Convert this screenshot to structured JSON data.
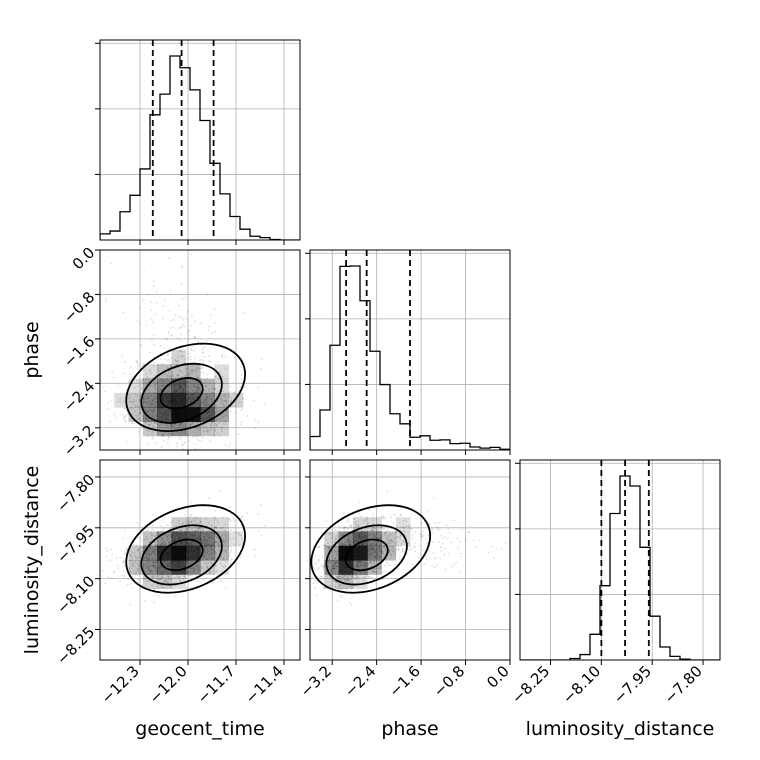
{
  "chart_data": {
    "type": "corner",
    "parameters": [
      {
        "name": "geocent_time",
        "label": "geocent_time",
        "range": [
          -12.55,
          -11.3
        ],
        "ticks": [
          "-12.3",
          "-12.0",
          "-11.7",
          "-11.4"
        ],
        "tick_values": [
          -12.3,
          -12.0,
          -11.7,
          -11.4
        ],
        "quantiles": [
          -12.22,
          -12.04,
          -11.84
        ],
        "peak": -12.05,
        "sigma": 0.17,
        "skew": 0
      },
      {
        "name": "phase",
        "label": "phase",
        "range": [
          -3.6,
          0.0
        ],
        "ticks": [
          "-3.2",
          "-2.4",
          "-1.6",
          "-0.8",
          "0.0"
        ],
        "tick_values": [
          -3.2,
          -2.4,
          -1.6,
          -0.8,
          0.0
        ],
        "quantiles": [
          -2.95,
          -2.58,
          -1.8
        ],
        "peak": -2.85,
        "sigma": 0.3,
        "skew": 1
      },
      {
        "name": "luminosity_distance",
        "label": "luminosity_distance",
        "range": [
          -8.34,
          -7.75
        ],
        "ticks": [
          "-8.25",
          "-8.10",
          "-7.95",
          "-7.80"
        ],
        "tick_values": [
          -8.25,
          -8.1,
          -7.95,
          -7.8
        ],
        "quantiles": [
          -8.1,
          -8.03,
          -7.96
        ],
        "peak": -8.03,
        "sigma": 0.055,
        "skew": 0
      }
    ],
    "grid": true,
    "title": "",
    "xlabel": "",
    "ylabel": ""
  }
}
